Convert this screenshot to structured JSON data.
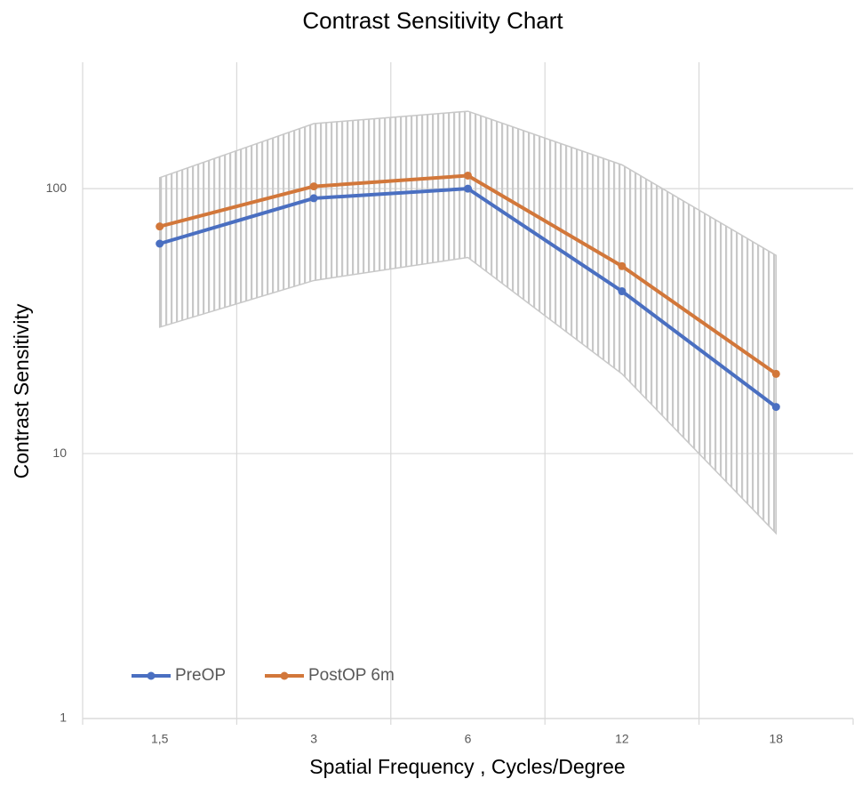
{
  "chart_data": {
    "type": "line",
    "title": "Contrast Sensitivity Chart",
    "x_label": "Spatial Frequency , Cycles/Degree",
    "y_label": "Contrast Sensitivity",
    "categories": [
      "1,5",
      "3",
      "6",
      "12",
      "18"
    ],
    "series": [
      {
        "name": "PreOP",
        "color": "#4a6fc1",
        "values": [
          62,
          92,
          100,
          41,
          15
        ]
      },
      {
        "name": "PostOP 6m",
        "color": "#d2773a",
        "values": [
          72,
          102,
          112,
          51,
          20
        ]
      }
    ],
    "band": {
      "color": "#c8c8c8",
      "upper": [
        110,
        176,
        196,
        123,
        56
      ],
      "lower": [
        30,
        45,
        55,
        20,
        5
      ]
    },
    "ylim": [
      1,
      300
    ],
    "yticks": [
      1,
      10,
      100
    ],
    "log_y": true,
    "grid": true,
    "legend": "bottom-left"
  }
}
